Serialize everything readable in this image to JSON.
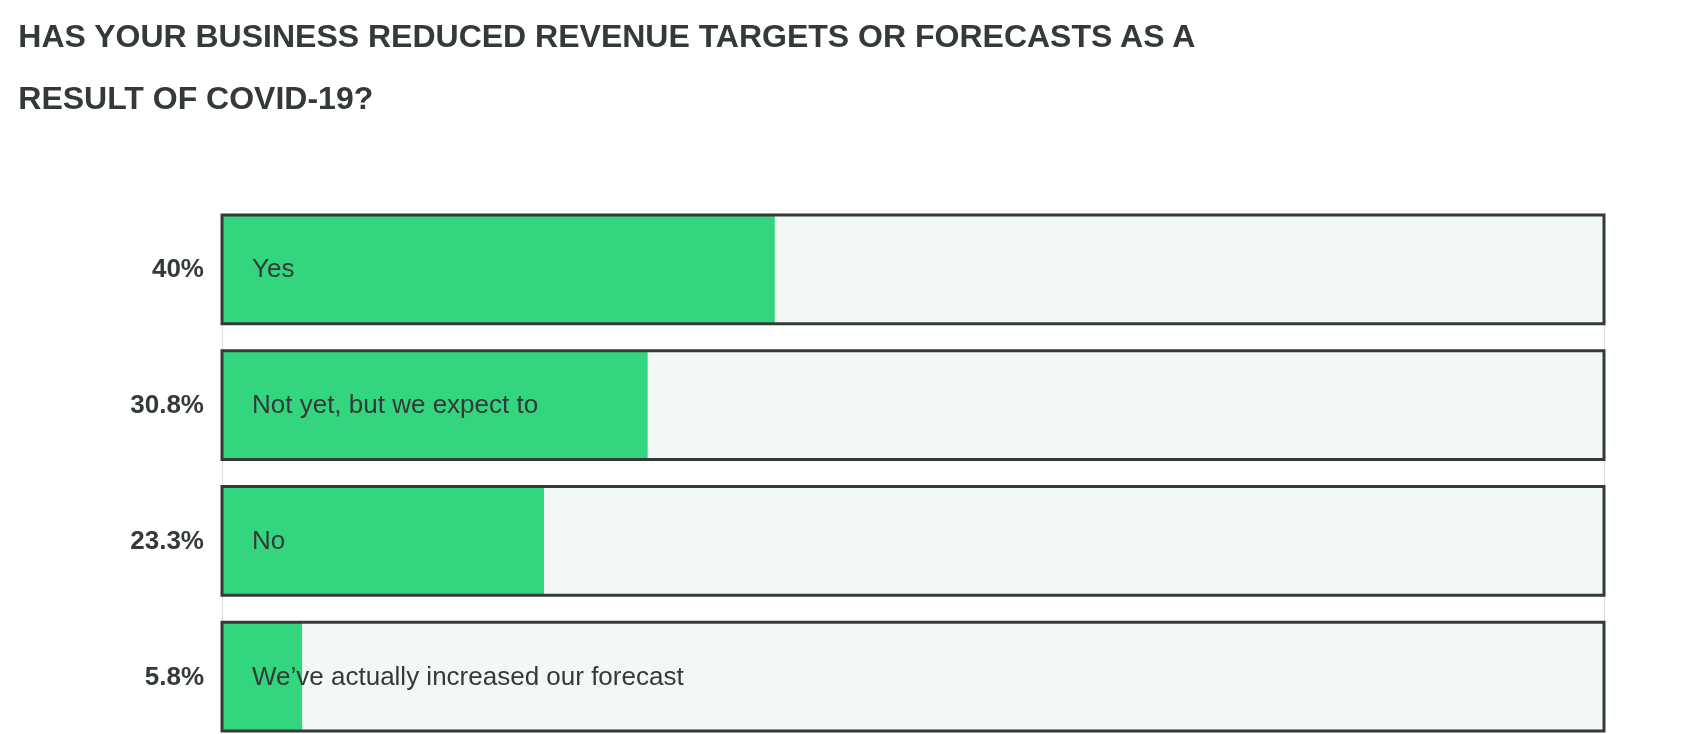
{
  "chart_data": {
    "type": "bar",
    "orientation": "horizontal",
    "title": "HAS YOUR BUSINESS REDUCED REVENUE TARGETS OR FORECASTS AS A RESULT OF COVID-19?",
    "categories": [
      "Yes",
      "Not yet, but we expect to",
      "No",
      "We’ve actually increased our forecast"
    ],
    "values": [
      40,
      30.8,
      23.3,
      5.8
    ],
    "value_labels": [
      "40%",
      "30.8%",
      "23.3%",
      "5.8%"
    ],
    "color": "#33d67f",
    "xlim": [
      0,
      100
    ],
    "tick_labels": false
  }
}
